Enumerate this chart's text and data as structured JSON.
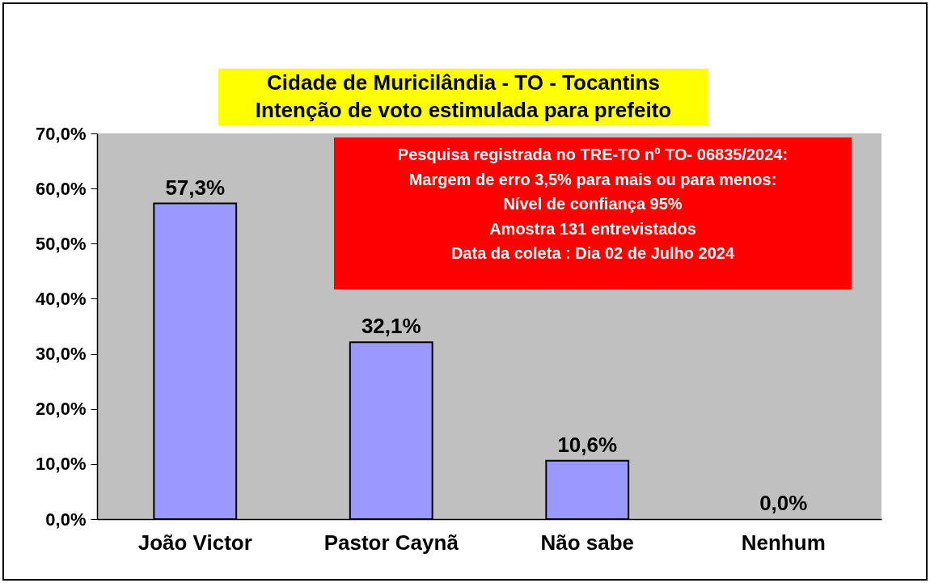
{
  "chart_data": {
    "type": "bar",
    "title": "Cidade de Muricilândia - TO - Tocantins",
    "subtitle": "Intenção de voto estimulada para prefeito",
    "categories": [
      "João Victor",
      "Pastor Caynã",
      "Não sabe",
      "Nenhum"
    ],
    "values": [
      57.3,
      32.1,
      10.6,
      0.0
    ],
    "value_labels": [
      "57,3%",
      "32,1%",
      "10,6%",
      "0,0%"
    ],
    "color": "#9999ff",
    "ylim": [
      0,
      70
    ],
    "yticks": [
      {
        "value": 0,
        "label": "0,0%"
      },
      {
        "value": 10,
        "label": "10,0%"
      },
      {
        "value": 20,
        "label": "20,0%"
      },
      {
        "value": 30,
        "label": "30,0%"
      },
      {
        "value": 40,
        "label": "40,0%"
      },
      {
        "value": 50,
        "label": "50,0%"
      },
      {
        "value": 60,
        "label": "60,0%"
      },
      {
        "value": 70,
        "label": "70,0%"
      }
    ],
    "grid": false,
    "annotations": [
      "Pesquisa registrada no TRE-TO nº TO- 06835/2024:",
      "Margem de erro 3,5% para mais ou para menos:",
      "Nível de confiança 95%",
      "Amostra 131 entrevistados",
      "Data da coleta : Dia 02 de Julho 2024"
    ]
  }
}
